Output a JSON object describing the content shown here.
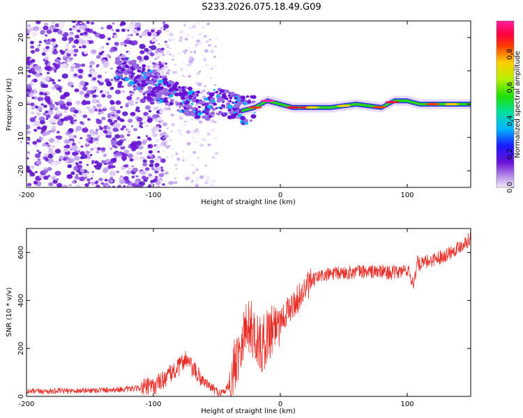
{
  "title": "S233.2026.075.18.49.G09",
  "chart_data": [
    {
      "type": "heatmap",
      "name": "spectrogram",
      "xlabel": "Height of straight line (km)",
      "ylabel": "Frequency (Hz)",
      "xlim": [
        -200,
        150
      ],
      "ylim": [
        -25,
        25
      ],
      "x_ticks": [
        -200,
        -100,
        0,
        100
      ],
      "x_tick_labels": [
        "-200",
        "-100",
        "0",
        "100"
      ],
      "y_ticks": [
        -20,
        -10,
        0,
        10,
        20
      ],
      "y_tick_labels": [
        "-20",
        "-10",
        "0",
        "10",
        "20"
      ],
      "colorbar": {
        "label": "Normalized spectral amplitude",
        "range": [
          0,
          1
        ],
        "ticks": [
          0.0,
          0.2,
          0.4,
          0.6,
          0.8
        ],
        "tick_labels": [
          "0.0",
          "0.2",
          "0.4",
          "0.6",
          "0.8"
        ]
      },
      "ridge": {
        "description_points_x": [
          -120,
          -100,
          -80,
          -60,
          -50,
          -40,
          -30,
          -20,
          -10,
          0,
          10,
          20,
          40,
          60,
          80,
          90,
          100,
          110,
          120,
          150
        ],
        "description_points_f": [
          10,
          6,
          2,
          -1,
          1,
          0,
          -2,
          -1,
          1,
          0,
          -1,
          -1,
          -1,
          0,
          -1,
          1,
          1,
          0,
          0,
          0
        ]
      }
    },
    {
      "type": "line",
      "name": "snr",
      "xlabel": "Height of straight line (km)",
      "ylabel": "SNR (10 * v/v)",
      "xlim": [
        -200,
        150
      ],
      "ylim": [
        0,
        700
      ],
      "x_ticks": [
        -200,
        -100,
        0,
        100
      ],
      "x_tick_labels": [
        "-200",
        "-100",
        "0",
        "100"
      ],
      "y_ticks": [
        0,
        200,
        400,
        600
      ],
      "y_tick_labels": [
        "0",
        "200",
        "400",
        "600"
      ],
      "color": "#e8302a",
      "series_envelope": {
        "x": [
          -200,
          -150,
          -120,
          -100,
          -90,
          -80,
          -75,
          -70,
          -60,
          -50,
          -45,
          -40,
          -35,
          -30,
          -25,
          -20,
          -15,
          -10,
          -5,
          0,
          10,
          20,
          25,
          30,
          40,
          60,
          80,
          90,
          95,
          100,
          105,
          108,
          110,
          120,
          130,
          140,
          150
        ],
        "y": [
          20,
          25,
          30,
          40,
          80,
          120,
          160,
          120,
          60,
          20,
          15,
          50,
          150,
          250,
          300,
          260,
          200,
          260,
          300,
          320,
          380,
          450,
          480,
          500,
          510,
          520,
          520,
          515,
          520,
          530,
          470,
          560,
          550,
          570,
          590,
          620,
          660
        ]
      }
    }
  ]
}
